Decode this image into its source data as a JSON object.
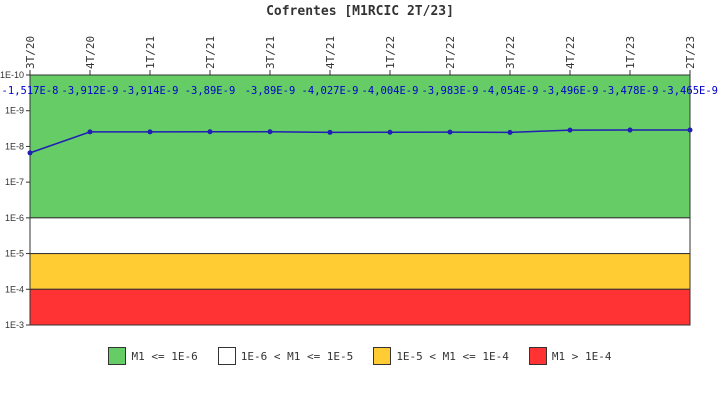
{
  "chart_data": {
    "type": "line",
    "title": "Cofrentes [M1RCIC 2T/23]",
    "x": [
      "3T/20",
      "4T/20",
      "1T/21",
      "2T/21",
      "3T/21",
      "4T/21",
      "1T/22",
      "2T/22",
      "3T/22",
      "4T/22",
      "1T/23",
      "2T/23"
    ],
    "series": [
      {
        "values": [
          -1.517e-08,
          -3.912e-09,
          -3.914e-09,
          -3.89e-09,
          -3.89e-09,
          -4.027e-09,
          -4.004e-09,
          -3.983e-09,
          -4.054e-09,
          -3.496e-09,
          -3.478e-09,
          -3.465e-09
        ],
        "color": "#1f1fb4"
      }
    ],
    "data_labels": [
      "-1,517E-8",
      "-3,912E-9",
      "-3,914E-9",
      "-3,89E-9",
      "-3,89E-9",
      "-4,027E-9",
      "-4,004E-9",
      "-3,983E-9",
      "-4,054E-9",
      "-3,496E-9",
      "-3,478E-9",
      "-3,465E-9"
    ],
    "y_scale": "log",
    "y_axis_reversed": true,
    "ylim": [
      1e-10,
      0.001
    ],
    "y_tick_labels": [
      "1E-10",
      "1E-9",
      "1E-8",
      "1E-7",
      "1E-6",
      "1E-5",
      "1E-4",
      "1E-3"
    ],
    "x_axis_position": "top",
    "bands": [
      {
        "label": "M1 <= 1E-6",
        "from": 1e-10,
        "to": 1e-06,
        "color": "#66cc66"
      },
      {
        "label": "1E-6 < M1 <= 1E-5",
        "from": 1e-06,
        "to": 1e-05,
        "color": "#ffffff"
      },
      {
        "label": "1E-5 < M1 <= 1E-4",
        "from": 1e-05,
        "to": 0.0001,
        "color": "#ffcc33"
      },
      {
        "label": "M1 > 1E-4",
        "from": 0.0001,
        "to": 0.001,
        "color": "#ff3333"
      }
    ],
    "legend_position": "bottom"
  }
}
